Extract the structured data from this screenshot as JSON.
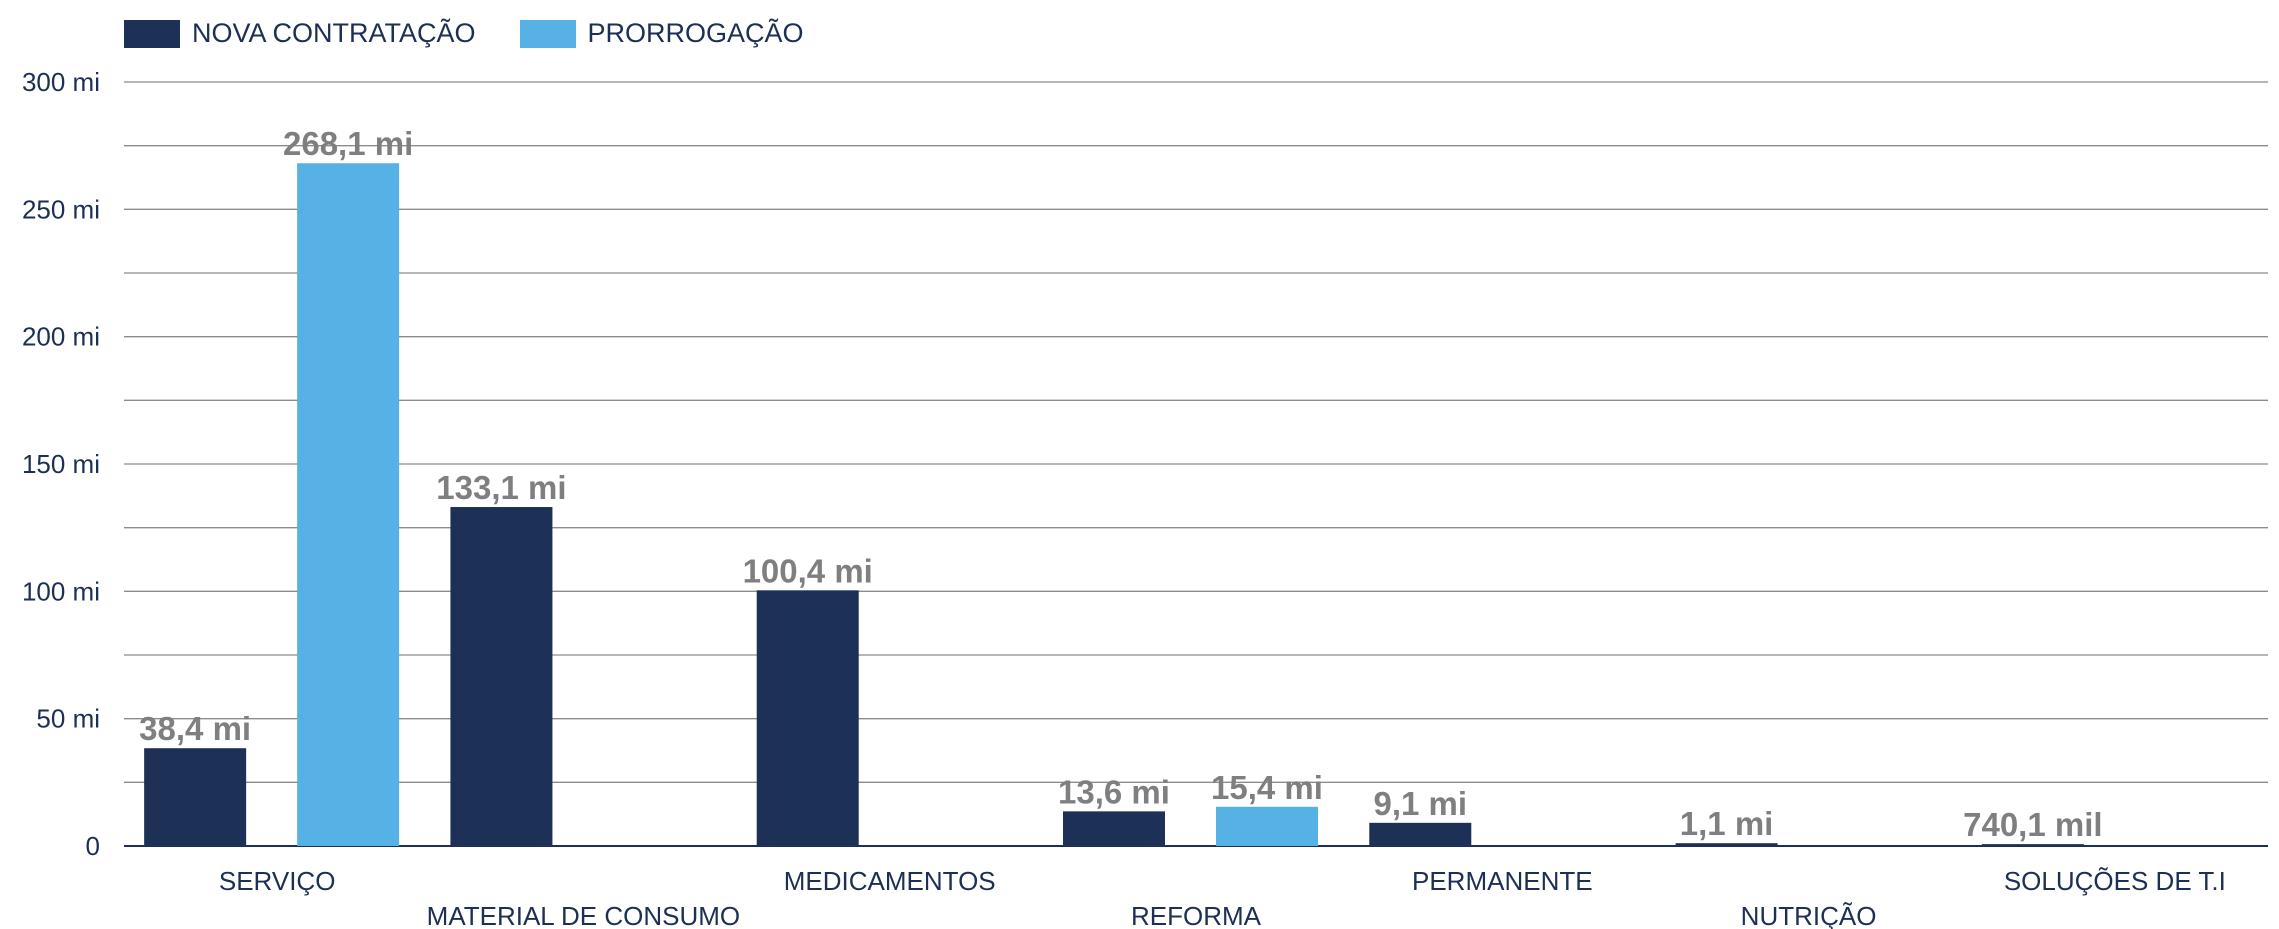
{
  "chart_data": {
    "type": "bar",
    "categories": [
      "SERVIÇO",
      "MATERIAL DE CONSUMO",
      "MEDICAMENTOS",
      "REFORMA",
      "PERMANENTE",
      "NUTRIÇÃO",
      "SOLUÇÕES DE T.I"
    ],
    "series": [
      {
        "name": "NOVA CONTRATAÇÃO",
        "color": "#1d3055",
        "values": [
          38.4,
          133.1,
          100.4,
          13.6,
          9.1,
          1.1,
          0.7401
        ],
        "labels": [
          "38,4 mi",
          "133,1 mi",
          "100,4 mi",
          "13,6 mi",
          "9,1 mi",
          "1,1 mi",
          "740,1 mil"
        ]
      },
      {
        "name": "PRORROGAÇÃO",
        "color": "#56b2e4",
        "values": [
          268.1,
          null,
          null,
          15.4,
          null,
          null,
          null
        ],
        "labels": [
          "268,1 mi",
          null,
          null,
          "15,4 mi",
          null,
          null,
          null
        ]
      }
    ],
    "ylim": [
      0,
      300
    ],
    "yticks": [
      0,
      50,
      100,
      150,
      200,
      250,
      300
    ],
    "ytick_labels": [
      "0",
      "50 mi",
      "100 mi",
      "150 mi",
      "200 mi",
      "250 mi",
      "300 mi"
    ],
    "grid": true,
    "legend_position": "top-left"
  }
}
